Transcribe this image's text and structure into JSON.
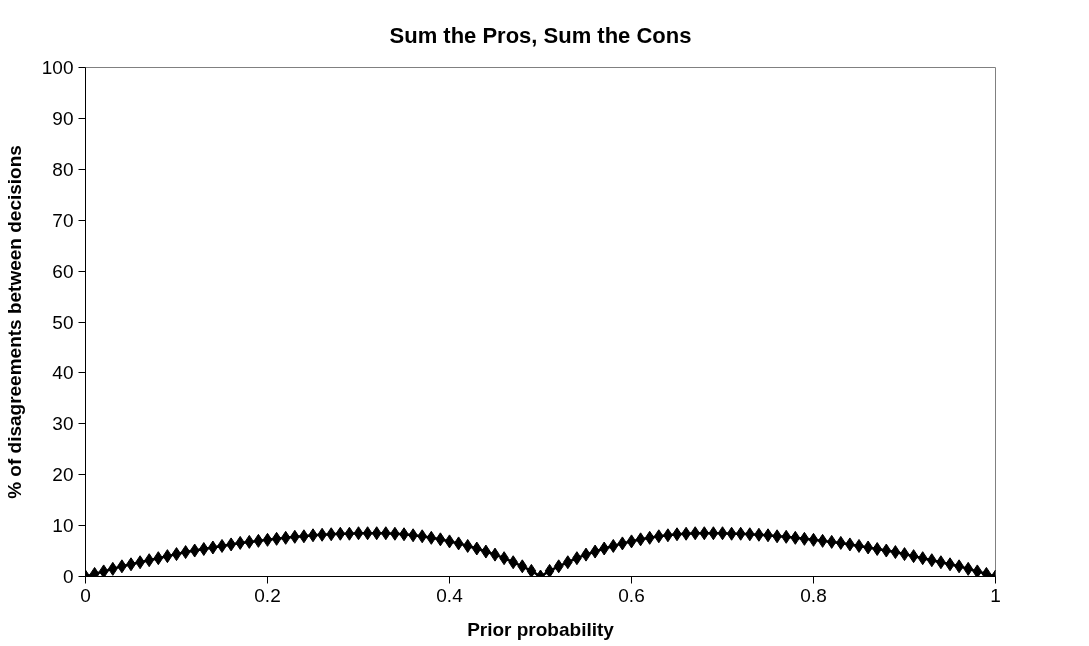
{
  "chart_data": {
    "type": "line",
    "title": "Sum the Pros, Sum the Cons",
    "xlabel": "Prior probability",
    "ylabel": "% of disagreements between decisions",
    "x": [
      0,
      0.01,
      0.02,
      0.03,
      0.04,
      0.05,
      0.06,
      0.07,
      0.08,
      0.09,
      0.1,
      0.11,
      0.12,
      0.13,
      0.14,
      0.15,
      0.16,
      0.17,
      0.18,
      0.19,
      0.2,
      0.21,
      0.22,
      0.23,
      0.24,
      0.25,
      0.26,
      0.27,
      0.28,
      0.29,
      0.3,
      0.31,
      0.32,
      0.33,
      0.34,
      0.35,
      0.36,
      0.37,
      0.38,
      0.39,
      0.4,
      0.41,
      0.42,
      0.43,
      0.44,
      0.45,
      0.46,
      0.47,
      0.48,
      0.49,
      0.5,
      0.51,
      0.52,
      0.53,
      0.54,
      0.55,
      0.56,
      0.57,
      0.58,
      0.59,
      0.6,
      0.61,
      0.62,
      0.63,
      0.64,
      0.65,
      0.66,
      0.67,
      0.68,
      0.69,
      0.7,
      0.71,
      0.72,
      0.73,
      0.74,
      0.75,
      0.76,
      0.77,
      0.78,
      0.79,
      0.8,
      0.81,
      0.82,
      0.83,
      0.84,
      0.85,
      0.86,
      0.87,
      0.88,
      0.89,
      0.9,
      0.91,
      0.92,
      0.93,
      0.94,
      0.95,
      0.96,
      0.97,
      0.98,
      0.99,
      1
    ],
    "series": [
      {
        "color": "#000000",
        "values": [
          0,
          0.5,
          1.0,
          1.5,
          2.0,
          2.4,
          2.8,
          3.2,
          3.6,
          4.0,
          4.4,
          4.8,
          5.1,
          5.4,
          5.7,
          6.0,
          6.3,
          6.6,
          6.8,
          7.0,
          7.2,
          7.4,
          7.6,
          7.8,
          7.9,
          8.1,
          8.2,
          8.3,
          8.4,
          8.4,
          8.5,
          8.5,
          8.5,
          8.5,
          8.4,
          8.3,
          8.1,
          7.9,
          7.6,
          7.3,
          6.9,
          6.5,
          6.0,
          5.5,
          4.9,
          4.3,
          3.6,
          2.8,
          2.0,
          1.1,
          0,
          1.1,
          2.0,
          2.8,
          3.6,
          4.3,
          4.9,
          5.5,
          6.0,
          6.5,
          6.9,
          7.3,
          7.6,
          7.9,
          8.1,
          8.3,
          8.4,
          8.5,
          8.5,
          8.5,
          8.5,
          8.4,
          8.4,
          8.3,
          8.2,
          8.1,
          7.9,
          7.8,
          7.6,
          7.4,
          7.2,
          7.0,
          6.8,
          6.6,
          6.3,
          6.0,
          5.7,
          5.4,
          5.1,
          4.8,
          4.4,
          4.0,
          3.6,
          3.2,
          2.8,
          2.4,
          2.0,
          1.5,
          1.0,
          0.5,
          0
        ]
      }
    ],
    "xlim": [
      0,
      1
    ],
    "xticks": [
      0,
      {
        "value": 0.2,
        "label": "0.2"
      },
      {
        "value": 0.4,
        "label": "0.4"
      },
      {
        "value": 0.6,
        "label": "0.6"
      },
      {
        "value": 0.8,
        "label": "0.8"
      },
      1
    ],
    "ylim": [
      0,
      100
    ],
    "yticks": [
      0,
      10,
      20,
      30,
      40,
      50,
      60,
      70,
      80,
      90,
      100
    ],
    "grid": false,
    "marker": "diamond",
    "line_style": "solid"
  }
}
